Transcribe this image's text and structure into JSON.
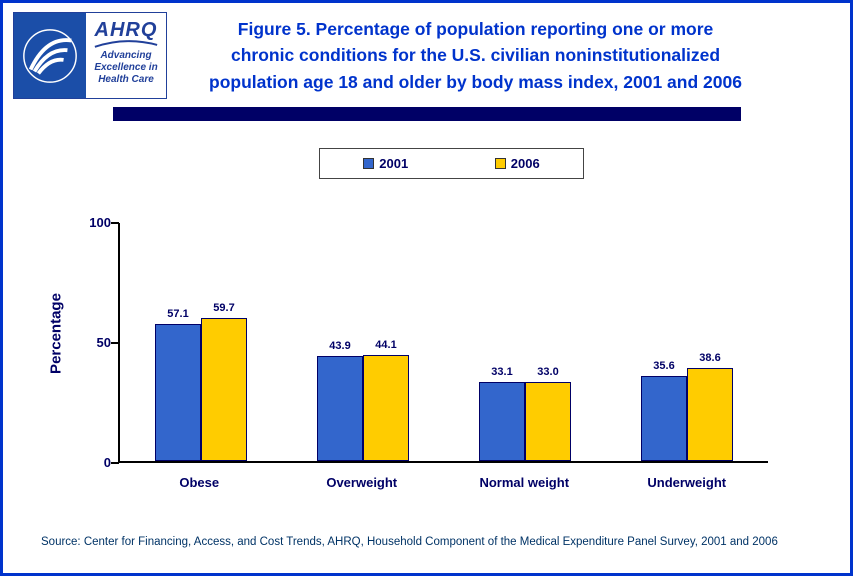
{
  "title_lines": [
    "Figure 5. Percentage of population reporting one or more",
    "chronic conditions for the U.S. civilian noninstitutionalized",
    "population age 18 and older by body mass index, 2001 and 2006"
  ],
  "logo": {
    "name": "AHRQ",
    "tagline": [
      "Advancing",
      "Excellence in",
      "Health Care"
    ]
  },
  "chart_data": {
    "type": "bar",
    "categories": [
      "Obese",
      "Overweight",
      "Normal weight",
      "Underweight"
    ],
    "series": [
      {
        "name": "2001",
        "color": "#3366CC",
        "values": [
          57.1,
          43.9,
          33.1,
          35.6
        ]
      },
      {
        "name": "2006",
        "color": "#FFCC00",
        "values": [
          59.7,
          44.1,
          33.0,
          38.6
        ]
      }
    ],
    "xlabel": "",
    "ylabel": "Percentage",
    "ylim": [
      0,
      100
    ],
    "yticks": [
      0,
      50,
      100
    ],
    "grid": false,
    "legend_position": "top-center",
    "value_label_decimals": 1
  },
  "source": "Source: Center for Financing, Access, and Cost Trends, AHRQ, Household Component of the Medical Expenditure Panel Survey, 2001 and 2006",
  "colors": {
    "page_border": "#0033CC",
    "title_text": "#0033CC",
    "axis_text": "#000066",
    "bar_border": "#000066",
    "shadow_bar": "#000066",
    "bar_2001": "#3366CC",
    "bar_2006": "#FFCC00"
  }
}
